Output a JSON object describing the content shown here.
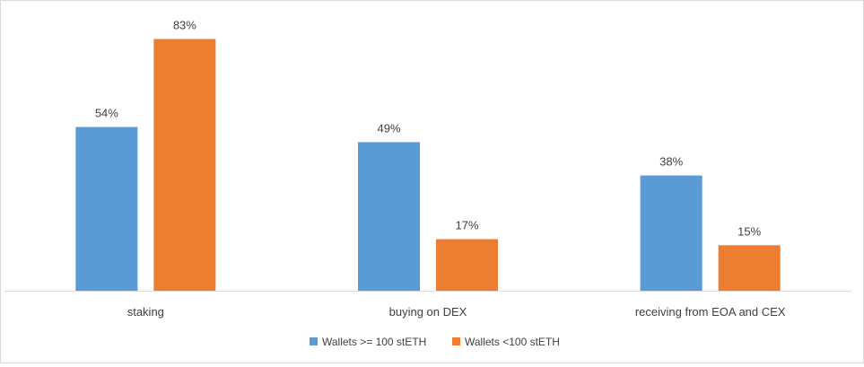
{
  "chart_data": {
    "type": "bar",
    "title": "",
    "xlabel": "",
    "ylabel": "",
    "ylim": [
      0,
      90
    ],
    "grid": false,
    "legend_position": "bottom",
    "categories": [
      "staking",
      "buying on DEX",
      "receiving from EOA and CEX"
    ],
    "series": [
      {
        "name": "Wallets >= 100 stETH",
        "values": [
          54,
          49,
          38
        ],
        "labels": [
          "54%",
          "49%",
          "38%"
        ],
        "color": "#5b9bd5"
      },
      {
        "name": "Wallets <100 stETH",
        "values": [
          83,
          17,
          15
        ],
        "labels": [
          "83%",
          "17%",
          "15%"
        ],
        "color": "#ed7d31"
      }
    ]
  }
}
